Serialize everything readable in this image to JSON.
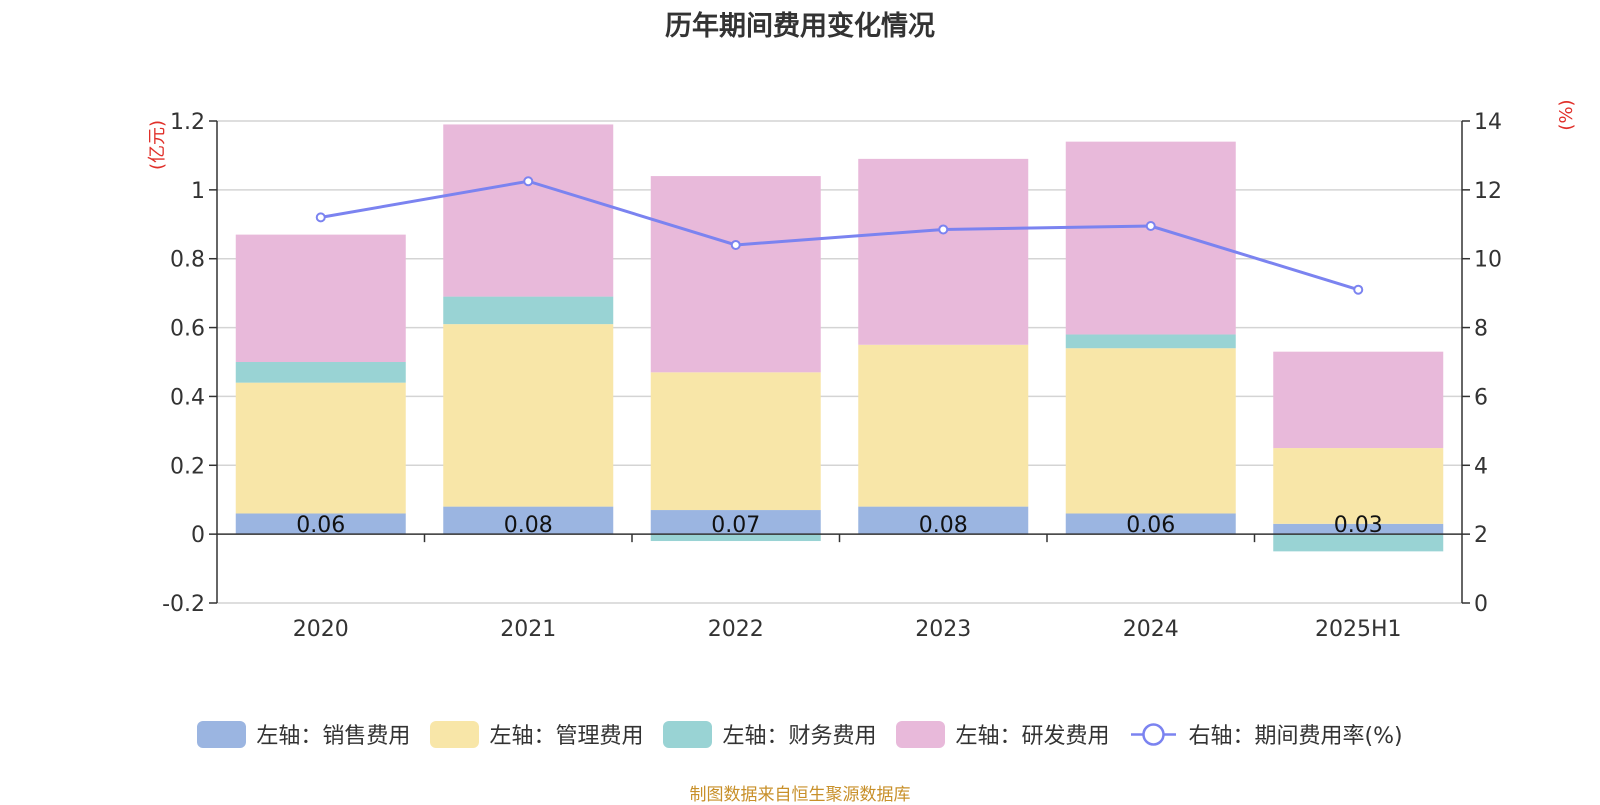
{
  "chart_data": {
    "type": "bar",
    "title": "历年期间费用变化情况",
    "categories": [
      "2020",
      "2021",
      "2022",
      "2023",
      "2024",
      "2025H1"
    ],
    "left_axis": {
      "label": "(亿元)",
      "ylim": [
        -0.2,
        1.2
      ],
      "ticks": [
        "-0.2",
        "0",
        "0.2",
        "0.4",
        "0.6",
        "0.8",
        "1",
        "1.2"
      ],
      "tick_values": [
        -0.2,
        0,
        0.2,
        0.4,
        0.6,
        0.8,
        1,
        1.2
      ]
    },
    "right_axis": {
      "label": "(%)",
      "ylim": [
        0,
        14
      ],
      "ticks": [
        "0",
        "2",
        "4",
        "6",
        "8",
        "10",
        "12",
        "14"
      ],
      "tick_values": [
        0,
        2,
        4,
        6,
        8,
        10,
        12,
        14
      ]
    },
    "stacked": true,
    "grid": true,
    "legend_position": "bottom",
    "series": [
      {
        "name": "左轴：销售费用",
        "color": "#9bb5e1",
        "values": [
          0.06,
          0.08,
          0.07,
          0.08,
          0.06,
          0.03
        ],
        "labels": [
          "0.06",
          "0.08",
          "0.07",
          "0.08",
          "0.06",
          "0.03"
        ]
      },
      {
        "name": "左轴：管理费用",
        "color": "#f8e6a8",
        "values": [
          0.38,
          0.53,
          0.4,
          0.47,
          0.48,
          0.22
        ]
      },
      {
        "name": "左轴：财务费用",
        "color": "#99d3d4",
        "values": [
          0.06,
          0.08,
          -0.02,
          0.0,
          0.04,
          -0.05
        ]
      },
      {
        "name": "左轴：研发费用",
        "color": "#e8b9da",
        "values": [
          0.37,
          0.5,
          0.57,
          0.54,
          0.56,
          0.28
        ]
      }
    ],
    "line_series": {
      "name": "右轴：期间费用率(%)",
      "color": "#7b83f0",
      "axis": "right",
      "values": [
        11.2,
        12.25,
        10.4,
        10.85,
        10.95,
        9.1
      ]
    }
  },
  "source_note": "制图数据来自恒生聚源数据库"
}
